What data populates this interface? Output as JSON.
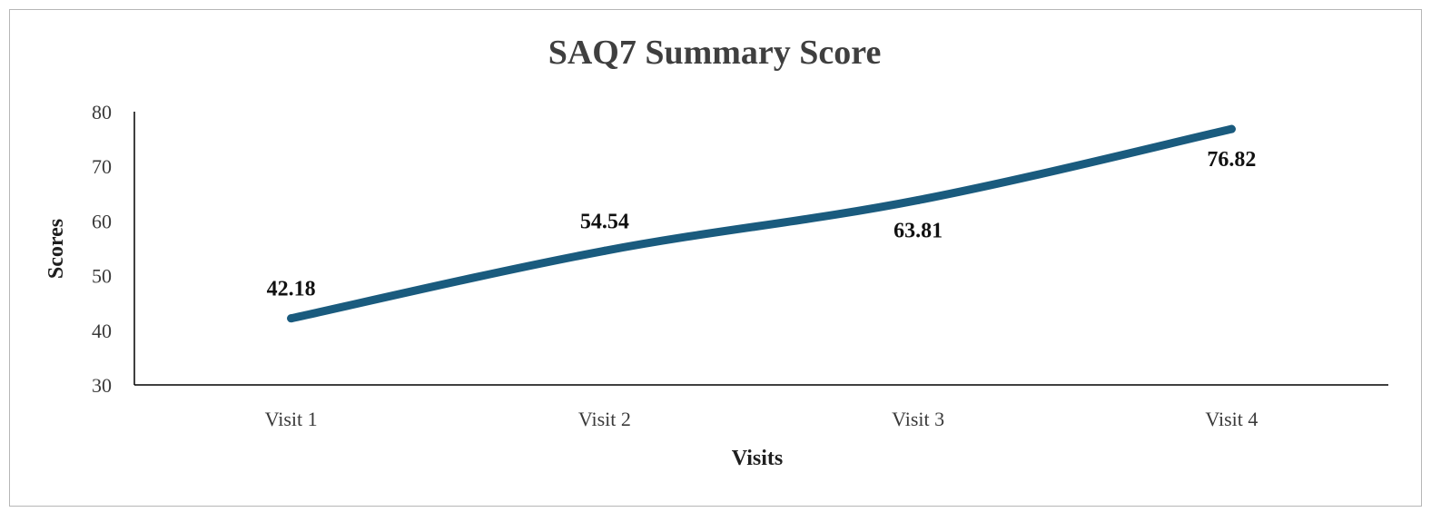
{
  "chart_data": {
    "type": "line",
    "title": "SAQ7 Summary Score",
    "xlabel": "Visits",
    "ylabel": "Scores",
    "categories": [
      "Visit 1",
      "Visit 2",
      "Visit 3",
      "Visit 4"
    ],
    "series": [
      {
        "values": [
          42.18,
          54.54,
          63.81,
          76.82
        ],
        "data_labels": [
          "42.18",
          "54.54",
          "63.81",
          "76.82"
        ],
        "color": "#1a5b7e"
      }
    ],
    "ylim": [
      30,
      80
    ],
    "y_ticks": [
      "30",
      "40",
      "50",
      "60",
      "70",
      "80"
    ],
    "grid": false,
    "legend": "none"
  }
}
